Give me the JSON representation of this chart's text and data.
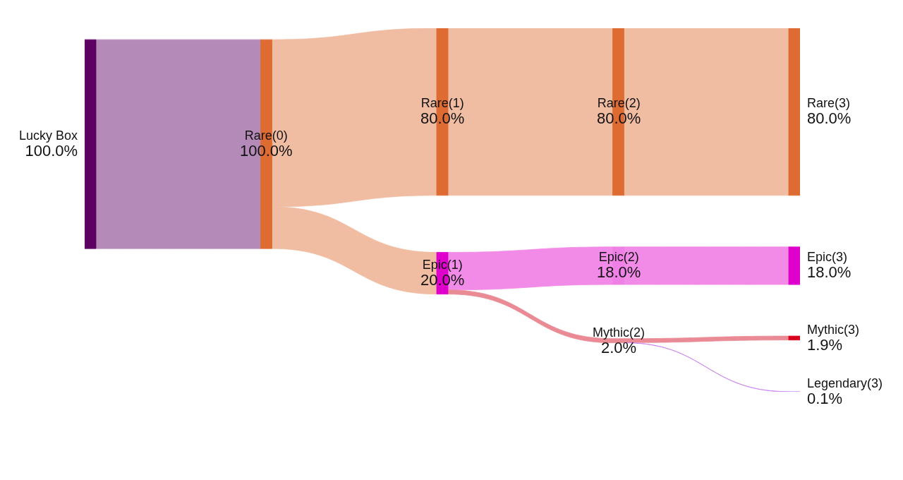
{
  "chart_data": {
    "type": "other",
    "categories": [
      "Lucky Box",
      "Rare(0)",
      "Rare(1)",
      "Epic(1)",
      "Rare(2)",
      "Epic(2)",
      "Mythic(2)",
      "Rare(3)",
      "Epic(3)",
      "Mythic(3)",
      "Legendary(3)"
    ],
    "colors": [
      null,
      "#b48bb8",
      "#f0bca2",
      "#f0bca2",
      "#f0bca2",
      "#f28ae8",
      "#ea8a94",
      "#f0bca2",
      "#f28ae8",
      "#ea8a94",
      "#cc88f0"
    ],
    "series": [
      {
        "values": [
          100.0,
          100.0,
          null,
          null,
          null,
          null,
          null,
          null,
          null,
          null,
          null
        ],
        "value_labels": [
          "100.0%",
          "100.0%",
          null,
          null,
          null,
          null,
          null,
          null,
          null,
          null,
          null
        ],
        "colors": [
          "#5c0062",
          "#de6b32",
          null,
          null,
          null,
          null,
          null,
          null,
          null,
          null,
          null
        ]
      },
      {
        "values": [
          null,
          null,
          80.0,
          20.0,
          null,
          null,
          null,
          null,
          null,
          null,
          null
        ],
        "value_labels": [
          null,
          null,
          "80.0%",
          "20.0%",
          null,
          null,
          null,
          null,
          null,
          null,
          null
        ],
        "colors": [
          null,
          null,
          "#de6b32",
          "#e000cc",
          null,
          null,
          null,
          null,
          null,
          null,
          null
        ]
      },
      {
        "values": [
          null,
          null,
          null,
          null,
          80.0,
          null,
          null,
          null,
          null,
          null,
          null
        ],
        "value_labels": [
          null,
          null,
          null,
          null,
          "80.0%",
          null,
          null,
          null,
          null,
          null,
          null
        ],
        "colors": [
          null,
          null,
          null,
          null,
          "#de6b32",
          null,
          null,
          null,
          null,
          null,
          null
        ]
      },
      {
        "values": [
          null,
          null,
          null,
          null,
          null,
          18.0,
          2.0,
          null,
          null,
          null,
          null
        ],
        "value_labels": [
          null,
          null,
          null,
          null,
          null,
          "18.0%",
          "2.0%",
          null,
          null,
          null,
          null
        ],
        "colors": [
          null,
          null,
          null,
          null,
          null,
          "#ee80e6",
          "#ea8a94",
          null,
          null,
          null,
          null
        ]
      },
      {
        "values": [
          null,
          null,
          null,
          null,
          null,
          null,
          null,
          80.0,
          null,
          null,
          null
        ],
        "value_labels": [
          null,
          null,
          null,
          null,
          null,
          null,
          null,
          "80.0%",
          null,
          null,
          null
        ],
        "colors": [
          null,
          null,
          null,
          null,
          null,
          null,
          null,
          "#de6b32",
          null,
          null,
          null
        ]
      },
      {
        "values": [
          null,
          null,
          null,
          null,
          null,
          null,
          null,
          null,
          18.0,
          null,
          null
        ],
        "value_labels": [
          null,
          null,
          null,
          null,
          null,
          null,
          null,
          null,
          "18.0%",
          null,
          null
        ],
        "colors": [
          null,
          null,
          null,
          null,
          null,
          null,
          null,
          null,
          "#e000cc",
          null,
          null
        ]
      },
      {
        "values": [
          null,
          null,
          null,
          null,
          null,
          null,
          null,
          null,
          null,
          1.9,
          0.1
        ],
        "value_labels": [
          null,
          null,
          null,
          null,
          null,
          null,
          null,
          null,
          null,
          "1.9%",
          "0.1%"
        ],
        "colors": [
          null,
          null,
          null,
          null,
          null,
          null,
          null,
          null,
          null,
          "#d8001c",
          "#d09cf6"
        ]
      }
    ]
  }
}
